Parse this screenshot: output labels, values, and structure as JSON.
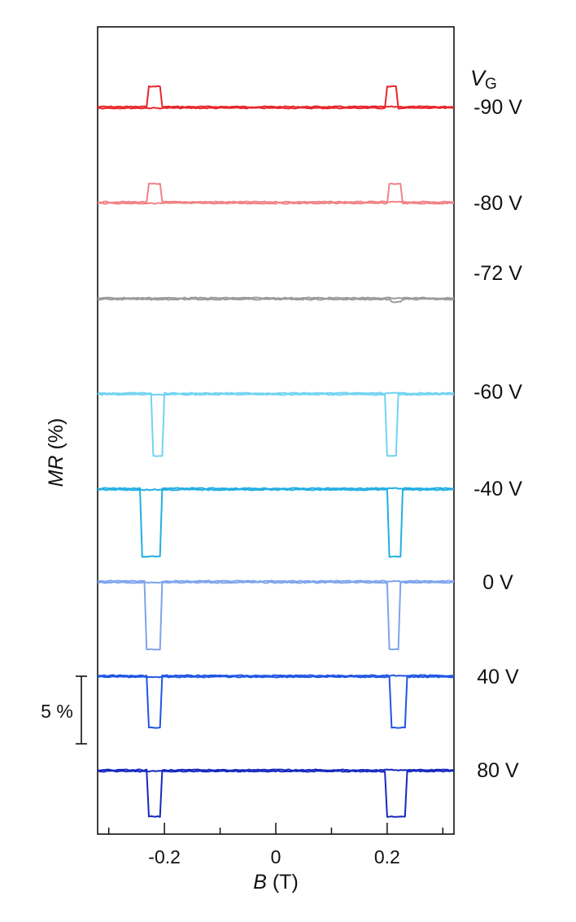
{
  "chart_data": {
    "type": "line",
    "xlabel": {
      "italic": "B",
      "rest": " (T)"
    },
    "ylabel": {
      "italic": "MR",
      "rest": " (%)"
    },
    "xlim": [
      -0.32,
      0.32
    ],
    "xticks_major": [
      -0.2,
      0,
      0.2
    ],
    "xtick_labels": [
      "-0.2",
      "0",
      "0.2"
    ],
    "xticks_minor": [
      -0.3,
      -0.1,
      0.1,
      0.3
    ],
    "legend_title": {
      "italic": "V",
      "sub": "G"
    },
    "scale_bar": {
      "label": "5 %",
      "value_percent": 5
    },
    "series_desc": "Traces are vertically offset; each switching feature's depth is given in % MR, estimated from the 5 % scale bar.",
    "series": [
      {
        "name": "-90 V",
        "color": "#e8262a",
        "direction": "up",
        "depth": 1.55,
        "left": [
          -0.228,
          -0.205
        ],
        "right": [
          0.2,
          0.22
        ],
        "twin": true
      },
      {
        "name": "-80 V",
        "color": "#f08285",
        "direction": "up",
        "depth": 1.4,
        "left": [
          -0.228,
          -0.205
        ],
        "right": [
          0.203,
          0.228
        ],
        "twin": true
      },
      {
        "name": "-72 V",
        "color": "#9a9a9a",
        "direction": "down",
        "depth": 0.25,
        "left": [
          0,
          0
        ],
        "right": [
          0.208,
          0.225
        ],
        "twin": false
      },
      {
        "name": "-60 V",
        "color": "#72d3f2",
        "direction": "down",
        "depth": 4.6,
        "left": [
          -0.22,
          -0.2
        ],
        "right": [
          0.2,
          0.22
        ],
        "twin": true
      },
      {
        "name": "-40 V",
        "color": "#22aee3",
        "direction": "down",
        "depth": 5.0,
        "left": [
          -0.24,
          -0.205
        ],
        "right": [
          0.203,
          0.228
        ],
        "twin": true
      },
      {
        "name": "0 V",
        "color": "#7da4ec",
        "direction": "down",
        "depth": 5.0,
        "left": [
          -0.235,
          -0.205
        ],
        "right": [
          0.203,
          0.222
        ],
        "twin": true
      },
      {
        "name": "40 V",
        "color": "#1f55e3",
        "direction": "down",
        "depth": 3.8,
        "left": [
          -0.23,
          -0.205
        ],
        "right": [
          0.205,
          0.233
        ],
        "twin": true
      },
      {
        "name": "80 V",
        "color": "#1628be",
        "direction": "down",
        "depth": 3.4,
        "left": [
          -0.23,
          -0.205
        ],
        "right": [
          0.2,
          0.233
        ],
        "twin": true
      }
    ]
  }
}
